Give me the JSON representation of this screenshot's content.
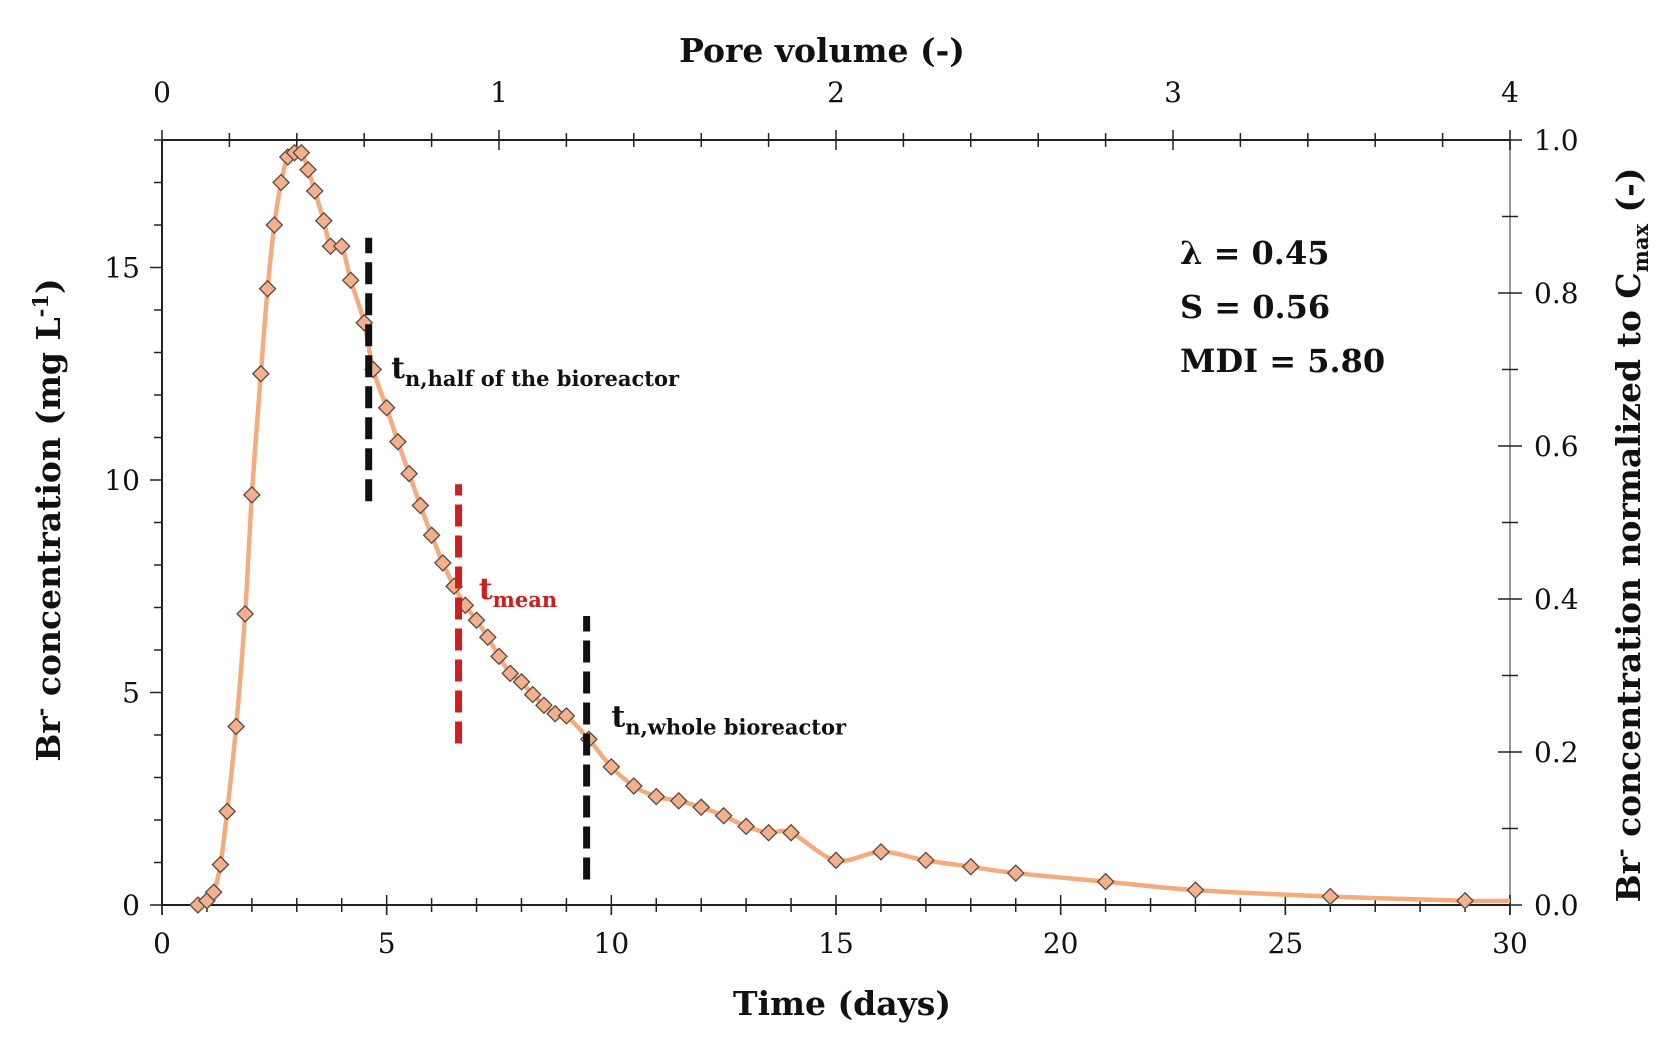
{
  "chart_data": {
    "type": "scatter",
    "title": "",
    "xlabel": "Time (days)",
    "x2label": "Pore volume (-)",
    "ylabel": {
      "main": "Br",
      "sup": "-",
      "rest": " concentration (mg L",
      "sup2": "-1",
      "end": ")"
    },
    "y2label": {
      "main": "Br",
      "sup": "-",
      "rest": " concentration normalized to C",
      "sub": "max",
      "end": " (-)"
    },
    "xlim": [
      0,
      30
    ],
    "ylim": [
      0,
      18
    ],
    "x2lim": [
      0,
      4
    ],
    "y2lim": [
      0.0,
      1.0
    ],
    "x_ticks": [
      "0",
      "5",
      "10",
      "15",
      "20",
      "25",
      "30"
    ],
    "y_ticks": [
      "0",
      "5",
      "10",
      "15"
    ],
    "x2_ticks": [
      "0",
      "1",
      "2",
      "3",
      "4"
    ],
    "y2_ticks": [
      "0.0",
      "0.2",
      "0.4",
      "0.6",
      "0.8",
      "1.0"
    ],
    "grid": false,
    "series": [
      {
        "name": "Br- concentration",
        "line_color": "#f4ab7e",
        "marker_color": "#f2b18c",
        "marker_edge": "#5a4a40",
        "x": [
          0.8,
          1.0,
          1.15,
          1.3,
          1.45,
          1.65,
          1.85,
          2.0,
          2.2,
          2.35,
          2.5,
          2.65,
          2.8,
          2.95,
          3.1,
          3.25,
          3.4,
          3.6,
          3.75,
          4.0,
          4.2,
          4.5,
          4.7,
          5.0,
          5.25,
          5.5,
          5.75,
          6.0,
          6.25,
          6.5,
          6.75,
          7.0,
          7.25,
          7.5,
          7.75,
          8.0,
          8.25,
          8.5,
          8.75,
          9.0,
          9.5,
          10.0,
          10.5,
          11.0,
          11.5,
          12.0,
          12.5,
          13.0,
          13.5,
          14.0,
          15.0,
          16.0,
          17.0,
          18.0,
          19.0,
          21.0,
          23.0,
          26.0,
          29.0
        ],
        "y": [
          0.0,
          0.1,
          0.3,
          0.95,
          2.2,
          4.2,
          6.85,
          9.65,
          12.5,
          14.5,
          16.0,
          17.0,
          17.6,
          17.7,
          17.7,
          17.3,
          16.8,
          16.1,
          15.5,
          15.5,
          14.7,
          13.7,
          12.6,
          11.7,
          10.9,
          10.15,
          9.4,
          8.7,
          8.05,
          7.5,
          7.05,
          6.7,
          6.3,
          5.85,
          5.45,
          5.25,
          4.95,
          4.7,
          4.5,
          4.45,
          3.9,
          3.25,
          2.8,
          2.55,
          2.45,
          2.3,
          2.1,
          1.85,
          1.7,
          1.7,
          1.05,
          1.25,
          1.05,
          0.9,
          0.75,
          0.55,
          0.35,
          0.2,
          0.1
        ],
        "curve_end": [
          30,
          0.1
        ]
      }
    ],
    "vertical_markers": [
      {
        "name": "t-half-marker",
        "x": 4.6,
        "y_from": 9.5,
        "y_to": 15.7,
        "color": "#111111"
      },
      {
        "name": "t-mean-marker",
        "x": 6.6,
        "y_from": 3.8,
        "y_to": 9.9,
        "color": "#cc1f1f"
      },
      {
        "name": "t-whole-marker",
        "x": 9.45,
        "y_from": 0.6,
        "y_to": 6.8,
        "color": "#111111"
      }
    ],
    "annotations": {
      "t_half": {
        "base": "t",
        "sub": "n,half of the bioreactor",
        "x": 5.1,
        "y": 12.4
      },
      "t_mean": {
        "base": "t",
        "sub": "mean",
        "x": 7.05,
        "y": 7.2,
        "color": "#cc1f1f"
      },
      "t_whole": {
        "base": "t",
        "sub": "n,whole bioreactor",
        "x": 10.0,
        "y": 4.2
      },
      "stats": [
        "λ = 0.45",
        "S = 0.56",
        "MDI = 5.80"
      ]
    }
  }
}
